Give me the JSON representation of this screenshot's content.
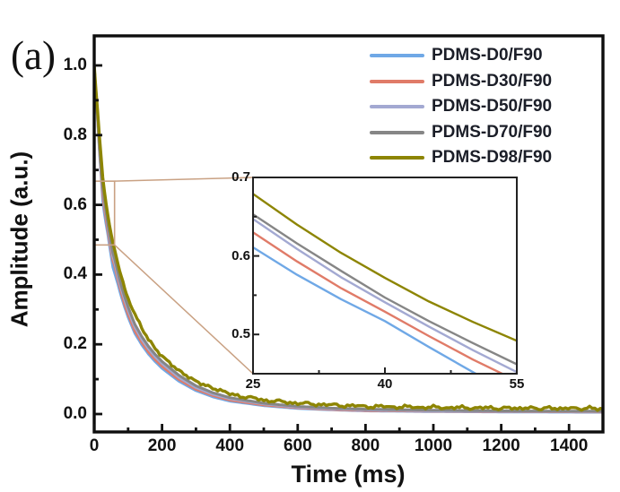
{
  "panel_label": "(a)",
  "colors": {
    "background": "#ffffff",
    "frame": "#0d0d0d",
    "tick": "#111111",
    "text": "#111111",
    "legend_text": "#1b1e28",
    "connector": "#c9a183",
    "inset_frame": "#222222"
  },
  "chart_data": {
    "type": "line",
    "title": "",
    "xlabel": "Time (ms)",
    "ylabel": "Amplitude (a.u.)",
    "xlim": [
      0,
      1500
    ],
    "ylim": [
      -0.057,
      1.085
    ],
    "grid": false,
    "legend_position": "top-right-inside",
    "x_major_ticks": [
      0,
      200,
      400,
      600,
      800,
      1000,
      1200,
      1400
    ],
    "x_major_labels": [
      "0",
      "200",
      "400",
      "600",
      "800",
      "1000",
      "1200",
      "1400"
    ],
    "x_minor_ticks": [
      100,
      300,
      500,
      700,
      900,
      1100,
      1300
    ],
    "y_major_ticks": [
      0,
      0.2,
      0.4,
      0.6,
      0.8,
      1.0
    ],
    "y_major_labels": [
      "0.0",
      "0.2",
      "0.4",
      "0.6",
      "0.8",
      "1.0"
    ],
    "y_minor_ticks": [
      0.1,
      0.3,
      0.5,
      0.7,
      0.9
    ],
    "x": [
      0,
      5,
      10,
      15,
      20,
      25,
      30,
      35,
      40,
      45,
      50,
      55,
      60,
      70,
      80,
      90,
      100,
      120,
      140,
      160,
      180,
      200,
      250,
      300,
      350,
      400,
      500,
      600,
      700,
      800,
      1000,
      1200,
      1500
    ],
    "series": [
      {
        "name": "PDMS-D0/F90",
        "color": "#6fa8e6",
        "values": [
          1.0,
          0.916,
          0.843,
          0.759,
          0.686,
          0.611,
          0.576,
          0.545,
          0.517,
          0.484,
          0.452,
          0.421,
          0.405,
          0.372,
          0.337,
          0.306,
          0.278,
          0.231,
          0.199,
          0.172,
          0.15,
          0.131,
          0.094,
          0.067,
          0.049,
          0.037,
          0.024,
          0.016,
          0.012,
          0.009,
          0.007,
          0.006,
          0.005
        ]
      },
      {
        "name": "PDMS-D30/F90",
        "color": "#e07b68",
        "values": [
          1.0,
          0.918,
          0.847,
          0.765,
          0.693,
          0.63,
          0.593,
          0.559,
          0.529,
          0.498,
          0.468,
          0.441,
          0.426,
          0.385,
          0.348,
          0.314,
          0.286,
          0.238,
          0.206,
          0.178,
          0.156,
          0.137,
          0.099,
          0.071,
          0.053,
          0.04,
          0.026,
          0.018,
          0.013,
          0.01,
          0.008,
          0.007,
          0.006
        ]
      },
      {
        "name": "PDMS-D50/F90",
        "color": "#a3a9d2",
        "values": [
          1.0,
          0.921,
          0.851,
          0.771,
          0.7,
          0.647,
          0.609,
          0.573,
          0.541,
          0.51,
          0.48,
          0.452,
          0.436,
          0.396,
          0.359,
          0.327,
          0.298,
          0.249,
          0.215,
          0.187,
          0.164,
          0.145,
          0.105,
          0.076,
          0.057,
          0.044,
          0.029,
          0.02,
          0.015,
          0.012,
          0.009,
          0.008,
          0.007
        ]
      },
      {
        "name": "PDMS-D70/F90",
        "color": "#868686",
        "values": [
          1.0,
          0.923,
          0.854,
          0.774,
          0.704,
          0.653,
          0.616,
          0.581,
          0.547,
          0.517,
          0.489,
          0.462,
          0.446,
          0.406,
          0.368,
          0.336,
          0.307,
          0.257,
          0.223,
          0.194,
          0.171,
          0.151,
          0.111,
          0.081,
          0.061,
          0.047,
          0.031,
          0.022,
          0.017,
          0.014,
          0.011,
          0.009,
          0.008
        ]
      },
      {
        "name": "PDMS-D98/F90",
        "color": "#8d8503",
        "noisy": true,
        "values": [
          1.0,
          0.93,
          0.868,
          0.8,
          0.74,
          0.679,
          0.64,
          0.604,
          0.572,
          0.542,
          0.516,
          0.492,
          0.472,
          0.43,
          0.394,
          0.36,
          0.33,
          0.283,
          0.247,
          0.215,
          0.19,
          0.168,
          0.126,
          0.094,
          0.072,
          0.057,
          0.04,
          0.031,
          0.026,
          0.022,
          0.019,
          0.017,
          0.016
        ]
      }
    ],
    "inset": {
      "xlim": [
        25,
        55
      ],
      "ylim": [
        0.45,
        0.7
      ],
      "x_major_ticks": [
        25,
        40,
        55
      ],
      "x_major_labels": [
        "25",
        "40",
        "55"
      ],
      "x_minor_ticks": [
        32.5,
        47.5
      ],
      "y_major_ticks": [
        0.5,
        0.6,
        0.7
      ],
      "y_major_labels": [
        "0.5",
        "0.6",
        "0.7"
      ],
      "y_minor_ticks": [
        0.55,
        0.65
      ],
      "source_region": {
        "t_range": [
          0,
          60
        ],
        "amplitude_range": [
          0.485,
          0.668
        ]
      }
    }
  }
}
